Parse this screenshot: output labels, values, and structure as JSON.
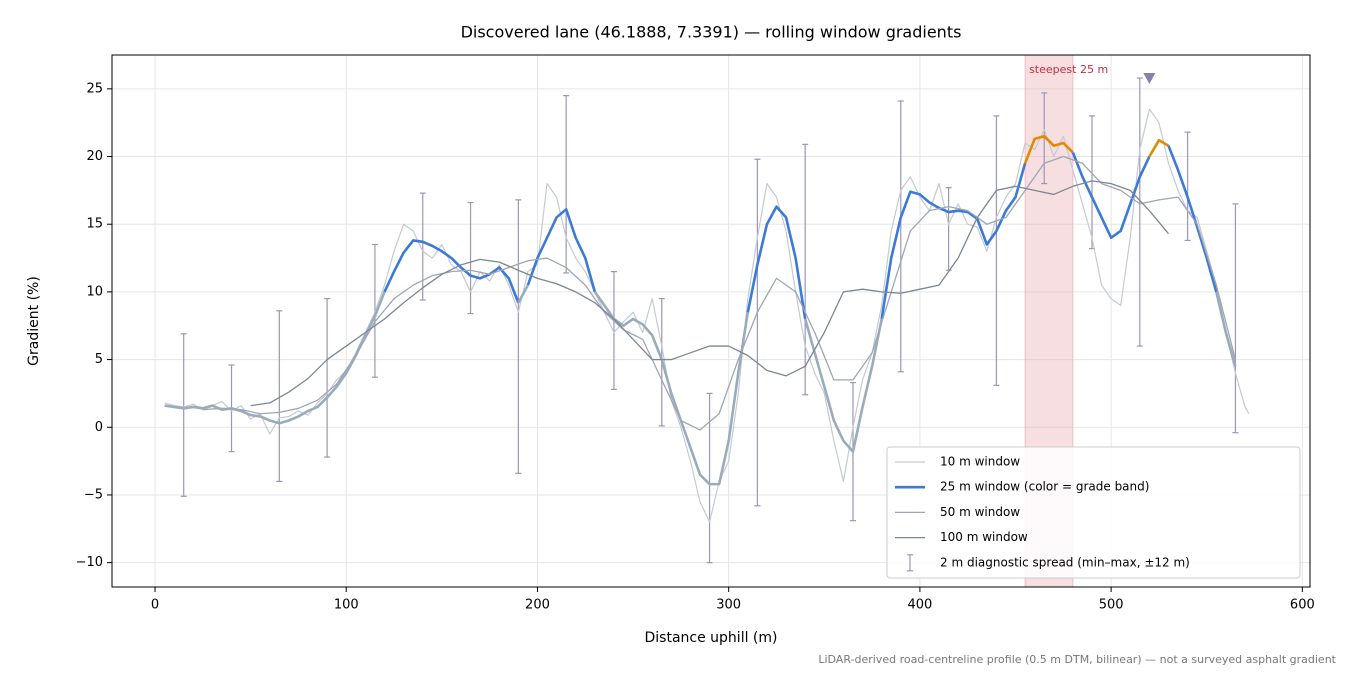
{
  "chart_data": {
    "type": "line",
    "title": "Discovered lane (46.1888, 7.3391) — rolling window gradients",
    "x_label": "Distance uphill (m)",
    "y_label": "Gradient (%)",
    "footnote": "LiDAR-derived road-centreline profile (0.5 m DTM, bilinear) — not a surveyed asphalt gradient",
    "xlim": [
      -22.5,
      604
    ],
    "ylim": [
      -11.8,
      27.5
    ],
    "xticks": [
      0,
      100,
      200,
      300,
      400,
      500,
      600
    ],
    "yticks": [
      {
        "value": -10,
        "label": "−10"
      },
      {
        "value": -5,
        "label": "−5"
      },
      0,
      5,
      10,
      15,
      20,
      25
    ],
    "grid": true,
    "legend": "lower right",
    "series": [
      {
        "name": "10 m window",
        "color": "#c4cad3",
        "width": 1.2,
        "x": [
          5,
          10,
          15,
          20,
          25,
          30,
          35,
          40,
          45,
          50,
          55,
          60,
          65,
          70,
          75,
          80,
          85,
          90,
          95,
          100,
          105,
          110,
          115,
          120,
          125,
          130,
          135,
          140,
          145,
          150,
          155,
          160,
          165,
          170,
          175,
          180,
          185,
          190,
          195,
          200,
          205,
          210,
          215,
          220,
          225,
          230,
          235,
          240,
          245,
          250,
          255,
          260,
          265,
          270,
          275,
          280,
          285,
          290,
          295,
          300,
          305,
          310,
          315,
          320,
          325,
          330,
          335,
          340,
          345,
          350,
          355,
          360,
          365,
          370,
          375,
          380,
          385,
          390,
          395,
          400,
          405,
          410,
          415,
          420,
          425,
          430,
          435,
          440,
          445,
          450,
          455,
          460,
          465,
          470,
          475,
          480,
          485,
          490,
          495,
          500,
          505,
          510,
          515,
          520,
          525,
          530,
          535,
          540,
          545,
          550,
          555,
          560,
          565,
          570,
          572
        ],
        "values": [
          1.8,
          1.6,
          1.5,
          1.7,
          1.3,
          1.6,
          1.9,
          1.2,
          1.6,
          0.6,
          1.0,
          -0.5,
          0.7,
          0.8,
          1.2,
          0.9,
          1.8,
          2.5,
          3.5,
          4.2,
          5.5,
          7.0,
          8.5,
          10.5,
          13.0,
          15.0,
          14.5,
          13.0,
          12.5,
          13.5,
          12.0,
          11.5,
          10.0,
          11.5,
          10.8,
          12.0,
          10.5,
          8.5,
          11.5,
          12.0,
          18.0,
          17.0,
          14.0,
          12.5,
          11.5,
          10.0,
          8.5,
          7.0,
          7.8,
          8.5,
          7.0,
          9.5,
          6.0,
          2.0,
          0.0,
          -2.5,
          -5.5,
          -7.0,
          -4.0,
          -2.5,
          2.5,
          9.5,
          14.0,
          18.0,
          17.0,
          14.5,
          10.0,
          6.0,
          4.0,
          2.5,
          -1.0,
          -4.0,
          0.0,
          3.5,
          5.5,
          9.0,
          14.5,
          17.5,
          18.5,
          17.0,
          16.0,
          18.0,
          15.0,
          16.5,
          15.0,
          14.8,
          13.0,
          15.5,
          17.0,
          18.0,
          21.0,
          20.5,
          22.0,
          20.0,
          21.5,
          19.0,
          16.5,
          14.0,
          10.5,
          9.5,
          9.0,
          14.0,
          20.5,
          23.5,
          22.5,
          19.5,
          17.5,
          16.0,
          15.5,
          13.0,
          10.5,
          7.0,
          4.0,
          1.5,
          1.0
        ]
      },
      {
        "name": "25 m window (color = grade band)",
        "color": "#3b7ad6",
        "width": 2.6,
        "band_thresholds": [
          10,
          20
        ],
        "band_colors": [
          "#9aabbc",
          "#3b7ad6",
          "#e08a00"
        ],
        "x": [
          5,
          10,
          15,
          20,
          25,
          30,
          35,
          40,
          45,
          50,
          55,
          60,
          65,
          70,
          75,
          80,
          85,
          90,
          95,
          100,
          105,
          110,
          115,
          120,
          125,
          130,
          135,
          140,
          145,
          150,
          155,
          160,
          165,
          170,
          175,
          180,
          185,
          190,
          195,
          200,
          205,
          210,
          215,
          220,
          225,
          230,
          235,
          240,
          245,
          250,
          255,
          260,
          265,
          270,
          275,
          280,
          285,
          290,
          295,
          300,
          305,
          310,
          315,
          320,
          325,
          330,
          335,
          340,
          345,
          350,
          355,
          360,
          365,
          370,
          375,
          380,
          385,
          390,
          395,
          400,
          405,
          410,
          415,
          420,
          425,
          430,
          435,
          440,
          445,
          450,
          455,
          460,
          465,
          470,
          475,
          480,
          485,
          490,
          495,
          500,
          505,
          510,
          515,
          520,
          525,
          530,
          535,
          540,
          545,
          550,
          555,
          560,
          565
        ],
        "values": [
          1.6,
          1.5,
          1.4,
          1.5,
          1.4,
          1.6,
          1.3,
          1.4,
          1.2,
          0.9,
          0.8,
          0.5,
          0.3,
          0.5,
          0.8,
          1.2,
          1.5,
          2.2,
          3.0,
          4.0,
          5.3,
          6.8,
          8.2,
          10.0,
          11.5,
          12.9,
          13.8,
          13.7,
          13.4,
          13.0,
          12.5,
          11.8,
          11.2,
          11.0,
          11.3,
          11.8,
          11.0,
          9.2,
          10.5,
          12.5,
          14.0,
          15.5,
          16.1,
          14.0,
          12.5,
          10.0,
          9.0,
          8.0,
          7.5,
          8.0,
          7.6,
          6.8,
          5.0,
          2.5,
          0.5,
          -1.5,
          -3.5,
          -4.2,
          -4.2,
          -1.0,
          4.0,
          8.5,
          12.0,
          15.0,
          16.3,
          15.5,
          12.5,
          8.0,
          5.5,
          3.0,
          0.5,
          -1.0,
          -1.8,
          1.5,
          4.5,
          8.0,
          12.5,
          15.5,
          17.4,
          17.2,
          16.6,
          16.2,
          15.9,
          16.0,
          15.9,
          15.4,
          13.5,
          14.5,
          16.0,
          17.0,
          19.5,
          21.3,
          21.5,
          20.8,
          21.0,
          20.3,
          18.5,
          17.0,
          15.5,
          14.0,
          14.5,
          16.5,
          18.5,
          20.0,
          21.2,
          20.8,
          19.0,
          17.0,
          14.8,
          12.5,
          10.0,
          7.0,
          4.5
        ]
      },
      {
        "name": "50 m window",
        "color": "#9ea6b4",
        "width": 1.3,
        "x": [
          25,
          35,
          45,
          55,
          65,
          75,
          85,
          95,
          105,
          115,
          125,
          135,
          145,
          155,
          165,
          175,
          185,
          195,
          205,
          215,
          225,
          235,
          245,
          255,
          265,
          275,
          285,
          295,
          305,
          315,
          325,
          335,
          345,
          355,
          365,
          375,
          385,
          395,
          405,
          415,
          425,
          435,
          445,
          455,
          465,
          475,
          485,
          495,
          505,
          515,
          525,
          535,
          545,
          555,
          565
        ],
        "values": [
          1.3,
          1.4,
          1.3,
          1.0,
          1.1,
          1.4,
          2.0,
          3.2,
          5.3,
          7.8,
          9.5,
          10.5,
          11.2,
          11.5,
          11.6,
          11.3,
          11.8,
          12.3,
          12.5,
          11.8,
          10.5,
          8.5,
          7.2,
          6.5,
          3.5,
          0.5,
          -0.2,
          1.0,
          5.0,
          8.5,
          11.0,
          10.0,
          7.0,
          3.5,
          3.5,
          5.5,
          10.0,
          14.5,
          16.0,
          16.3,
          16.0,
          15.0,
          15.5,
          17.5,
          19.5,
          20.0,
          19.5,
          18.0,
          17.5,
          16.5,
          16.8,
          17.0,
          15.0,
          10.5,
          5.0
        ]
      },
      {
        "name": "100 m window",
        "color": "#7d8694",
        "width": 1.3,
        "x": [
          50,
          60,
          70,
          80,
          90,
          100,
          110,
          120,
          130,
          140,
          150,
          160,
          170,
          180,
          190,
          200,
          210,
          220,
          230,
          240,
          250,
          260,
          270,
          280,
          290,
          300,
          310,
          320,
          330,
          340,
          350,
          360,
          370,
          380,
          390,
          400,
          410,
          420,
          430,
          440,
          450,
          460,
          470,
          480,
          490,
          500,
          510,
          520,
          530
        ],
        "values": [
          1.6,
          1.8,
          2.6,
          3.6,
          5.0,
          6.0,
          7.0,
          8.0,
          9.2,
          10.3,
          11.3,
          12.0,
          12.4,
          12.2,
          11.6,
          11.0,
          10.6,
          10.0,
          9.2,
          8.0,
          6.5,
          5.0,
          5.0,
          5.5,
          6.0,
          6.0,
          5.3,
          4.2,
          3.8,
          4.5,
          7.0,
          10.0,
          10.2,
          10.0,
          9.9,
          10.2,
          10.5,
          12.5,
          15.5,
          17.5,
          17.8,
          17.5,
          17.2,
          17.8,
          18.2,
          18.0,
          17.5,
          16.0,
          14.3
        ]
      }
    ],
    "error_bars": {
      "name": "2 m diagnostic spread (min–max, ±12 m)",
      "color": "#9a96b8",
      "x": [
        15,
        40,
        65,
        90,
        115,
        140,
        165,
        190,
        215,
        240,
        265,
        290,
        315,
        340,
        365,
        390,
        415,
        440,
        465,
        490,
        515,
        540,
        565
      ],
      "high": [
        6.9,
        4.6,
        8.6,
        9.5,
        13.5,
        17.3,
        16.6,
        16.8,
        24.5,
        11.5,
        9.5,
        2.5,
        19.8,
        20.9,
        3.3,
        24.1,
        17.7,
        23.0,
        24.7,
        23.0,
        25.8,
        21.8,
        16.5
      ],
      "low": [
        -5.1,
        -1.8,
        -4.0,
        -2.2,
        3.7,
        9.4,
        8.4,
        -3.4,
        11.4,
        2.8,
        0.1,
        -10.0,
        -5.8,
        2.4,
        -6.9,
        4.1,
        11.6,
        3.1,
        18.0,
        13.2,
        6.0,
        13.8,
        -0.4
      ]
    },
    "highlight": {
      "label": "steepest 25 m",
      "x": [
        455,
        480
      ],
      "color": "#e8a0a8"
    },
    "marker": {
      "x": 520,
      "y": 25.8,
      "color": "#8a7fa8"
    }
  }
}
